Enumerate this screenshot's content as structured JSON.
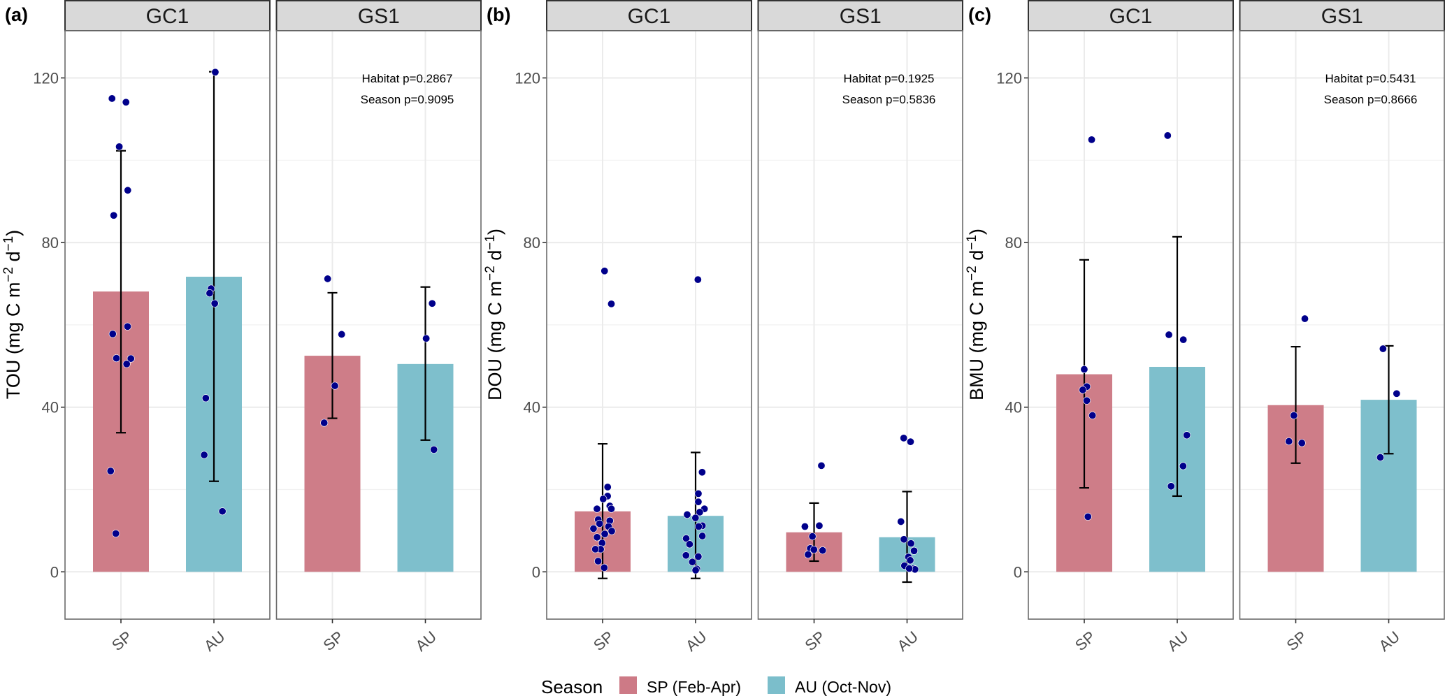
{
  "chart_data": {
    "type": "bar",
    "description": "Faceted bar charts with jittered points and error bars; three metrics (a) TOU, (b) DOU, (c) BMU by habitat (GC1, GS1) and season (SP, AU)",
    "categories": [
      "SP",
      "AU"
    ],
    "facets": [
      "GC1",
      "GS1"
    ],
    "y_ticks": [
      0,
      40,
      80,
      120
    ],
    "ylim": [
      -11.5,
      131.5
    ],
    "grid": true,
    "legend": {
      "title": "Season",
      "position": "bottom",
      "entries": [
        {
          "key": "SP",
          "label": "SP (Feb-Apr)",
          "color": "#cd7a86"
        },
        {
          "key": "AU",
          "label": "AU (Oct-Nov)",
          "color": "#7bbecb"
        }
      ]
    },
    "point_color": "#00008b",
    "panels": [
      {
        "tag": "(a)",
        "ylabel_main": "TOU (mg C m",
        "ylabel_sup1": "−2",
        "ylabel_mid": " d",
        "ylabel_sup2": "−1",
        "ylabel_end": ")",
        "facets": [
          {
            "name": "GC1",
            "pvalues": [],
            "groups": [
              {
                "season": "SP",
                "mean": 68.1,
                "err_low": 33.8,
                "err_high": 102.3,
                "points": [
                  114.1,
                  115.0,
                  103.3,
                  92.7,
                  86.6,
                  59.6,
                  57.8,
                  51.8,
                  51.9,
                  50.5,
                  24.5,
                  9.3
                ]
              },
              {
                "season": "AU",
                "mean": 71.7,
                "err_low": 22.0,
                "err_high": 121.5,
                "points": [
                  121.4,
                  68.8,
                  67.7,
                  65.2,
                  42.2,
                  28.4,
                  14.7
                ]
              }
            ]
          },
          {
            "name": "GS1",
            "pvalues": [
              "Habitat p=0.2867",
              "Season p=0.9095"
            ],
            "groups": [
              {
                "season": "SP",
                "mean": 52.5,
                "err_low": 37.3,
                "err_high": 67.8,
                "points": [
                  71.2,
                  57.7,
                  45.2,
                  36.2
                ]
              },
              {
                "season": "AU",
                "mean": 50.5,
                "err_low": 32.0,
                "err_high": 69.2,
                "points": [
                  65.2,
                  56.7,
                  29.7
                ]
              }
            ]
          }
        ]
      },
      {
        "tag": "(b)",
        "ylabel_main": "DOU (mg C m",
        "ylabel_sup1": "−2",
        "ylabel_mid": " d",
        "ylabel_sup2": "−1",
        "ylabel_end": ")",
        "facets": [
          {
            "name": "GC1",
            "pvalues": [],
            "groups": [
              {
                "season": "SP",
                "mean": 14.7,
                "err_low": -1.6,
                "err_high": 31.1,
                "points": [
                  73.1,
                  65.1,
                  20.6,
                  18.4,
                  17.7,
                  16.0,
                  15.3,
                  15.3,
                  12.7,
                  12.4,
                  11.7,
                  11.0,
                  10.5,
                  9.9,
                  9.2,
                  8.4,
                  7.0,
                  5.5,
                  5.5,
                  2.6,
                  1.0
                ]
              },
              {
                "season": "AU",
                "mean": 13.6,
                "err_low": -1.6,
                "err_high": 29.0,
                "points": [
                  71.0,
                  24.2,
                  19.0,
                  17.0,
                  15.3,
                  14.5,
                  13.9,
                  13.1,
                  11.2,
                  11.0,
                  8.7,
                  8.1,
                  6.7,
                  4.0,
                  3.7,
                  2.4,
                  0.7,
                  0.4
                ]
              }
            ]
          },
          {
            "name": "GS1",
            "pvalues": [
              "Habitat p=0.1925",
              "Season p=0.5836"
            ],
            "groups": [
              {
                "season": "SP",
                "mean": 9.6,
                "err_low": 2.6,
                "err_high": 16.7,
                "points": [
                  25.8,
                  11.2,
                  11.0,
                  8.6,
                  5.7,
                  5.4,
                  5.2,
                  4.2
                ]
              },
              {
                "season": "AU",
                "mean": 8.4,
                "err_low": -2.5,
                "err_high": 19.5,
                "points": [
                  32.5,
                  31.6,
                  12.2,
                  7.9,
                  6.9,
                  5.1,
                  3.6,
                  2.8,
                  1.5,
                  0.8,
                  0.6,
                  0.8
                ]
              }
            ]
          }
        ]
      },
      {
        "tag": "(c)",
        "ylabel_main": "BMU (mg C m",
        "ylabel_sup1": "−2",
        "ylabel_mid": " d",
        "ylabel_sup2": "−1",
        "ylabel_end": ")",
        "facets": [
          {
            "name": "GC1",
            "pvalues": [],
            "groups": [
              {
                "season": "SP",
                "mean": 48.0,
                "err_low": 20.4,
                "err_high": 75.8,
                "points": [
                  105.0,
                  49.2,
                  45.0,
                  44.2,
                  41.6,
                  38.0,
                  13.4
                ]
              },
              {
                "season": "AU",
                "mean": 49.8,
                "err_low": 18.4,
                "err_high": 81.4,
                "points": [
                  106.0,
                  57.6,
                  56.4,
                  33.2,
                  25.7,
                  20.8
                ]
              }
            ]
          },
          {
            "name": "GS1",
            "pvalues": [
              "Habitat p=0.5431",
              "Season p=0.8666"
            ],
            "groups": [
              {
                "season": "SP",
                "mean": 40.5,
                "err_low": 26.4,
                "err_high": 54.7,
                "points": [
                  61.5,
                  38.0,
                  31.7,
                  31.3
                ]
              },
              {
                "season": "AU",
                "mean": 41.8,
                "err_low": 28.7,
                "err_high": 54.9,
                "points": [
                  54.2,
                  43.3,
                  27.8
                ]
              }
            ]
          }
        ]
      }
    ]
  }
}
